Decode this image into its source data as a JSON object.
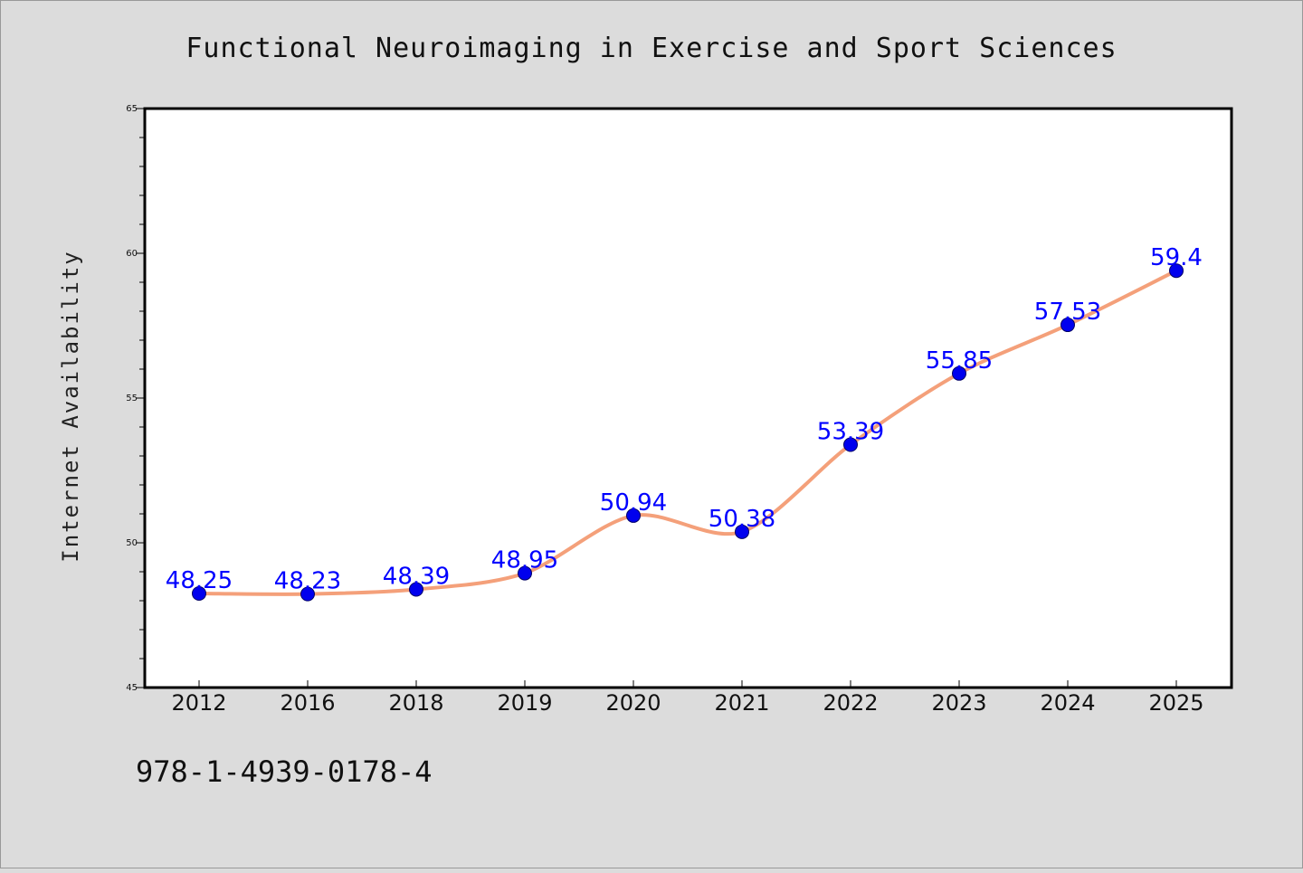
{
  "chart_data": {
    "type": "line",
    "title": "Functional Neuroimaging in Exercise and Sport Sciences",
    "xlabel": "",
    "ylabel": "Internet Availability",
    "categories": [
      "2012",
      "2016",
      "2018",
      "2019",
      "2020",
      "2021",
      "2022",
      "2023",
      "2024",
      "2025"
    ],
    "series": [
      {
        "values": [
          48.25,
          48.23,
          48.39,
          48.95,
          50.94,
          50.38,
          53.39,
          55.85,
          57.53,
          59.4
        ],
        "data_labels": [
          "48.25",
          "48.23",
          "48.39",
          "48.95",
          "50.94",
          "50.38",
          "53.39",
          "55.85",
          "57.53",
          "59.4"
        ]
      }
    ],
    "ylim": [
      45,
      65
    ],
    "yticks": [
      "45",
      "50",
      "55",
      "60",
      "65"
    ],
    "grid": false,
    "legend": "none"
  },
  "footer": {
    "isbn": "978-1-4939-0178-4"
  },
  "colors": {
    "background": "#dcdcdc",
    "plot_background": "#ffffff",
    "line": "#f4a07a",
    "marker": "#0000ee",
    "data_label": "#0000ff",
    "axis": "#000000"
  }
}
